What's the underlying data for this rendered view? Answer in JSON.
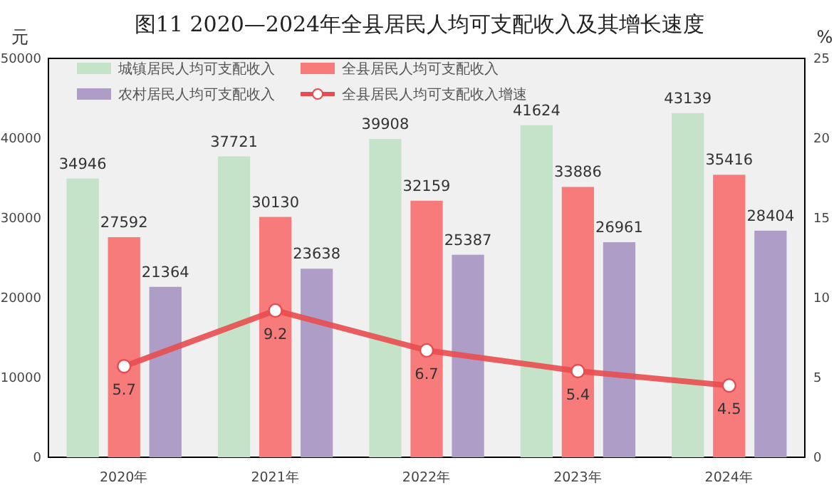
{
  "chart_data": {
    "type": "bar",
    "title": "图11  2020—2024年全县居民人均可支配收入及其增长速度",
    "ylabel": "元",
    "y2label": "%",
    "categories": [
      "2020年",
      "2021年",
      "2022年",
      "2023年",
      "2024年"
    ],
    "series": [
      {
        "name": "城镇居民人均可支配收入",
        "color": "#c5e3c9",
        "values": [
          34946,
          37721,
          39908,
          41624,
          43139
        ]
      },
      {
        "name": "全县居民人均可支配收入",
        "color": "#f77b7b",
        "values": [
          27592,
          30130,
          32159,
          33886,
          35416
        ]
      },
      {
        "name": "农村居民人均可支配收入",
        "color": "#ae9ec7",
        "values": [
          21364,
          23638,
          25387,
          26961,
          28404
        ]
      },
      {
        "name": "全县居民人均可支配收入增速",
        "type": "line",
        "axis": "y2",
        "color": "#e84c4f",
        "marker": "circle",
        "values": [
          5.7,
          9.2,
          6.7,
          5.4,
          4.5
        ]
      }
    ],
    "ylim": [
      0,
      50000
    ],
    "yticks": [
      0,
      10000,
      20000,
      30000,
      40000,
      50000
    ],
    "y2lim": [
      0,
      25
    ],
    "y2ticks": [
      0,
      5,
      10,
      15,
      20,
      25
    ],
    "data_labels": true,
    "legend": "top left",
    "grid": false
  }
}
